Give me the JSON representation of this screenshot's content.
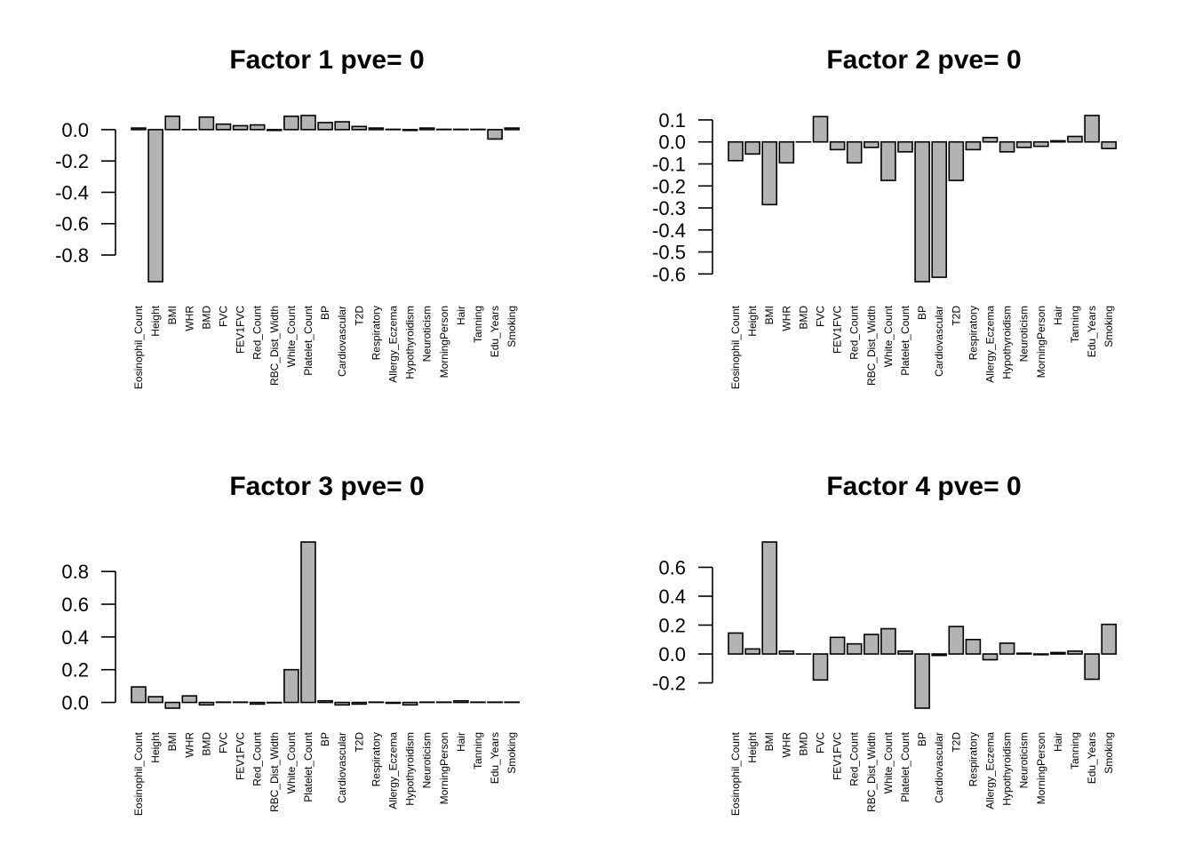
{
  "colors": {
    "bar_fill": "#b3b3b3",
    "bar_stroke": "#000000",
    "background": "#ffffff"
  },
  "chart_data": [
    {
      "type": "bar",
      "title": "Factor 1 pve= 0",
      "xlabel": "",
      "ylabel": "",
      "categories": [
        "Eosinophil_Count",
        "Height",
        "BMI",
        "WHR",
        "BMD",
        "FVC",
        "FEV1FVC",
        "Red_Count",
        "RBC_Dist_Width",
        "White_Count",
        "Platelet_Count",
        "BP",
        "Cardiovascular",
        "T2D",
        "Respiratory",
        "Allergy_Eczema",
        "Hypothyroidism",
        "Neuroticism",
        "MorningPerson",
        "Hair",
        "Tanning",
        "Edu_Years",
        "Smoking"
      ],
      "values": [
        0.01,
        -0.97,
        0.085,
        0.0,
        0.08,
        0.035,
        0.025,
        0.03,
        -0.005,
        0.085,
        0.09,
        0.045,
        0.05,
        0.02,
        0.01,
        0.002,
        -0.005,
        0.01,
        0.002,
        0.002,
        0.002,
        -0.06,
        0.01
      ],
      "yticks": [
        "0.0",
        "-0.2",
        "-0.4",
        "-0.6",
        "-0.8"
      ],
      "ytick_values": [
        0.0,
        -0.2,
        -0.4,
        -0.6,
        -0.8
      ],
      "ylim": [
        -0.97,
        0.09
      ]
    },
    {
      "type": "bar",
      "title": "Factor 2 pve= 0",
      "xlabel": "",
      "ylabel": "",
      "categories": [
        "Eosinophil_Count",
        "Height",
        "BMI",
        "WHR",
        "BMD",
        "FVC",
        "FEV1FVC",
        "Red_Count",
        "RBC_Dist_Width",
        "White_Count",
        "Platelet_Count",
        "BP",
        "Cardiovascular",
        "T2D",
        "Respiratory",
        "Allergy_Eczema",
        "Hypothyroidism",
        "Neuroticism",
        "MorningPerson",
        "Hair",
        "Tanning",
        "Edu_Years",
        "Smoking"
      ],
      "values": [
        -0.085,
        -0.055,
        -0.285,
        -0.095,
        0.0,
        0.115,
        -0.035,
        -0.095,
        -0.025,
        -0.175,
        -0.045,
        -0.635,
        -0.615,
        -0.175,
        -0.035,
        0.02,
        -0.045,
        -0.025,
        -0.02,
        0.005,
        0.025,
        0.12,
        -0.03
      ],
      "yticks": [
        "0.1",
        "0.0",
        "-0.1",
        "-0.2",
        "-0.3",
        "-0.4",
        "-0.5",
        "-0.6"
      ],
      "ytick_values": [
        0.1,
        0.0,
        -0.1,
        -0.2,
        -0.3,
        -0.4,
        -0.5,
        -0.6
      ],
      "ylim": [
        -0.635,
        0.12
      ]
    },
    {
      "type": "bar",
      "title": "Factor 3 pve= 0",
      "xlabel": "",
      "ylabel": "",
      "categories": [
        "Eosinophil_Count",
        "Height",
        "BMI",
        "WHR",
        "BMD",
        "FVC",
        "FEV1FVC",
        "Red_Count",
        "RBC_Dist_Width",
        "White_Count",
        "Platelet_Count",
        "BP",
        "Cardiovascular",
        "T2D",
        "Respiratory",
        "Allergy_Eczema",
        "Hypothyroidism",
        "Neuroticism",
        "MorningPerson",
        "Hair",
        "Tanning",
        "Edu_Years",
        "Smoking"
      ],
      "values": [
        0.095,
        0.035,
        -0.035,
        0.04,
        -0.015,
        0.002,
        0.002,
        -0.01,
        -0.002,
        0.2,
        0.98,
        0.01,
        -0.015,
        -0.01,
        0.002,
        -0.005,
        -0.015,
        0.002,
        0.002,
        0.01,
        0.002,
        0.002,
        0.002
      ],
      "yticks": [
        "0.0",
        "0.2",
        "0.4",
        "0.6",
        "0.8"
      ],
      "ytick_values": [
        0.0,
        0.2,
        0.4,
        0.6,
        0.8
      ],
      "ylim": [
        -0.035,
        0.98
      ]
    },
    {
      "type": "bar",
      "title": "Factor 4 pve= 0",
      "xlabel": "",
      "ylabel": "",
      "categories": [
        "Eosinophil_Count",
        "Height",
        "BMI",
        "WHR",
        "BMD",
        "FVC",
        "FEV1FVC",
        "Red_Count",
        "RBC_Dist_Width",
        "White_Count",
        "Platelet_Count",
        "BP",
        "Cardiovascular",
        "T2D",
        "Respiratory",
        "Allergy_Eczema",
        "Hypothyroidism",
        "Neuroticism",
        "MorningPerson",
        "Hair",
        "Tanning",
        "Edu_Years",
        "Smoking"
      ],
      "values": [
        0.145,
        0.035,
        0.775,
        0.02,
        0.0,
        -0.18,
        0.115,
        0.07,
        0.135,
        0.175,
        0.02,
        -0.375,
        -0.01,
        0.19,
        0.1,
        -0.04,
        0.075,
        0.005,
        -0.005,
        0.01,
        0.02,
        -0.175,
        0.205
      ],
      "yticks": [
        "0.6",
        "0.4",
        "0.2",
        "0.0",
        "-0.2"
      ],
      "ytick_values": [
        0.6,
        0.4,
        0.2,
        0.0,
        -0.2
      ],
      "ylim": [
        -0.375,
        0.775
      ]
    }
  ]
}
